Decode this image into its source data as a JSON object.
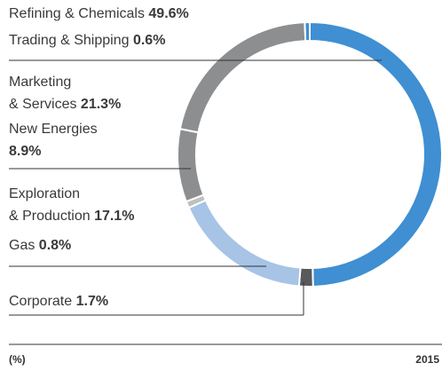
{
  "chart_data": {
    "type": "donut",
    "categories": [
      "Refining & Chemicals",
      "Corporate",
      "Exploration\n& Production",
      "Gas",
      "New Energies",
      "Marketing\n& Services",
      "Trading & Shipping"
    ],
    "values": [
      49.6,
      1.7,
      17.1,
      0.8,
      8.9,
      21.3,
      0.6
    ],
    "value_labels": [
      "49.6%",
      "1.7%",
      "17.1%",
      "0.8%",
      "8.9%",
      "21.3%",
      "0.6%"
    ],
    "colors": [
      "#3f8fd2",
      "#58595b",
      "#a7c3e6",
      "#bfbfc1",
      "#8d8e90",
      "#8d8e90",
      "#3f8fd2"
    ],
    "unit_label": "(%)",
    "year_label": "2015"
  }
}
